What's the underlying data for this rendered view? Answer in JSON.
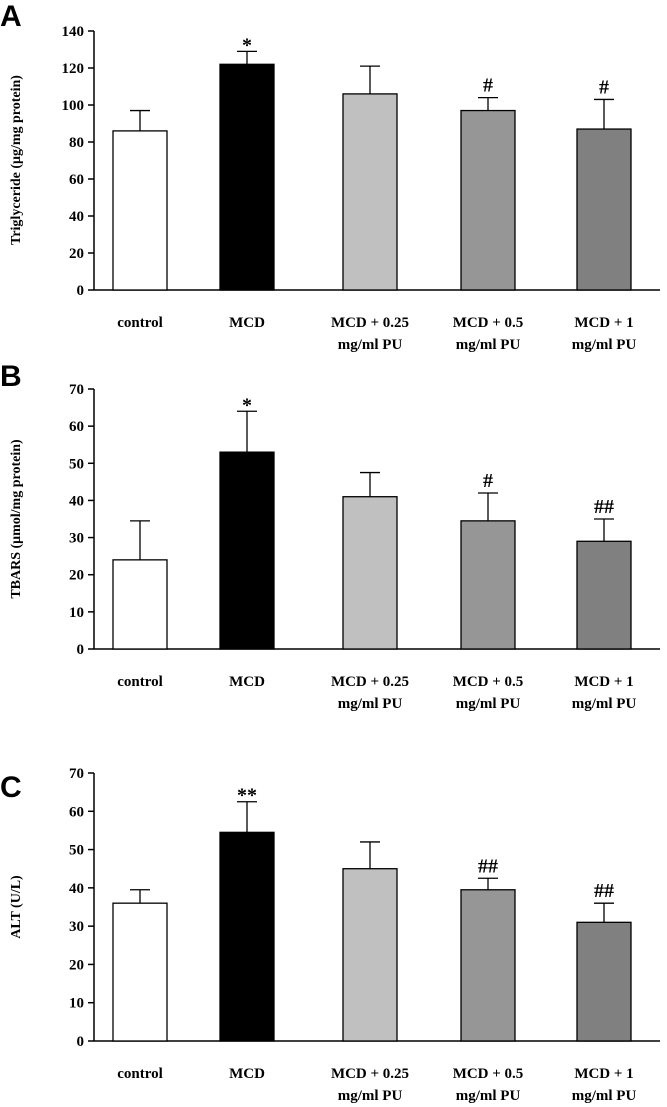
{
  "chart_data": [
    {
      "panel": "A",
      "type": "bar",
      "ylabel": "Triglyceride  (μg/mg protein)",
      "ylim": [
        0,
        140
      ],
      "yticks": [
        0,
        20,
        40,
        60,
        80,
        100,
        120,
        140
      ],
      "categories": [
        [
          "control"
        ],
        [
          "MCD"
        ],
        [
          "MCD + 0.25",
          "mg/ml PU"
        ],
        [
          "MCD + 0.5",
          "mg/ml PU"
        ],
        [
          "MCD + 1",
          "mg/ml PU"
        ]
      ],
      "values": [
        86,
        122,
        106,
        97,
        87
      ],
      "errors": [
        11,
        7,
        15,
        7,
        16
      ],
      "annotations": [
        "",
        "*",
        "",
        "#",
        "#"
      ],
      "colors": [
        "#ffffff",
        "#000000",
        "#c0c0c0",
        "#969696",
        "#808080"
      ]
    },
    {
      "panel": "B",
      "type": "bar",
      "ylabel": "TBARS (μmol/mg protein)",
      "ylim": [
        0,
        70
      ],
      "yticks": [
        0,
        10,
        20,
        30,
        40,
        50,
        60,
        70
      ],
      "categories": [
        [
          "control"
        ],
        [
          "MCD"
        ],
        [
          "MCD + 0.25",
          "mg/ml PU"
        ],
        [
          "MCD + 0.5",
          "mg/ml PU"
        ],
        [
          "MCD + 1",
          "mg/ml PU"
        ]
      ],
      "values": [
        24,
        53,
        41,
        34.5,
        29
      ],
      "errors": [
        10.5,
        11,
        6.5,
        7.5,
        6
      ],
      "annotations": [
        "",
        "*",
        "",
        "#",
        "##"
      ],
      "colors": [
        "#ffffff",
        "#000000",
        "#c0c0c0",
        "#969696",
        "#808080"
      ]
    },
    {
      "panel": "C",
      "type": "bar",
      "ylabel": "ALT (U/L)",
      "ylim": [
        0,
        70
      ],
      "yticks": [
        0,
        10,
        20,
        30,
        40,
        50,
        60,
        70
      ],
      "categories": [
        [
          "control"
        ],
        [
          "MCD"
        ],
        [
          "MCD + 0.25",
          "mg/ml PU"
        ],
        [
          "MCD + 0.5",
          "mg/ml PU"
        ],
        [
          "MCD + 1",
          "mg/ml PU"
        ]
      ],
      "values": [
        36,
        54.5,
        45,
        39.5,
        31
      ],
      "errors": [
        3.5,
        8,
        7,
        3,
        5
      ],
      "annotations": [
        "",
        "**",
        "",
        "##",
        "##"
      ],
      "colors": [
        "#ffffff",
        "#000000",
        "#c0c0c0",
        "#969696",
        "#808080"
      ]
    }
  ]
}
